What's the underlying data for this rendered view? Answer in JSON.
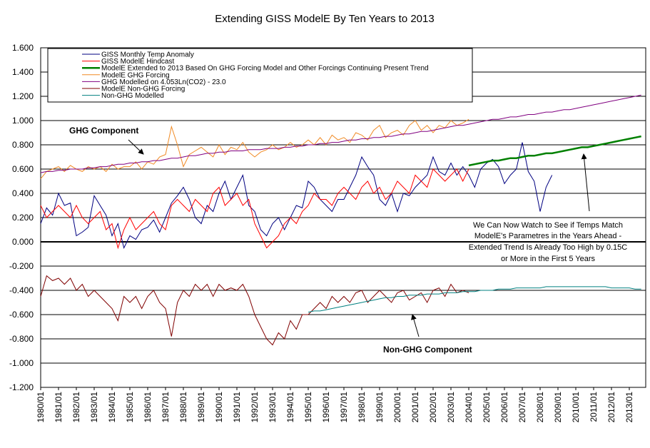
{
  "chart_data": {
    "type": "line",
    "title": "Extending GISS ModelE By Ten Years to 2013",
    "categories": [
      "1980/01",
      null,
      null,
      "1981/01",
      null,
      null,
      "1982/01",
      null,
      null,
      "1983/01",
      null,
      null,
      "1984/01",
      null,
      null,
      "1985/01",
      null,
      null,
      "1986/01",
      null,
      null,
      "1987/01",
      null,
      null,
      "1988/01",
      null,
      null,
      "1989/01",
      null,
      null,
      "1990/01",
      null,
      null,
      "1991/01",
      null,
      null,
      "1992/01",
      null,
      null,
      "1993/01",
      null,
      null,
      "1994/01",
      null,
      null,
      "1995/01",
      null,
      null,
      "1996/01",
      null,
      null,
      "1997/01",
      null,
      null,
      "1998/01",
      null,
      null,
      "1999/01",
      null,
      null,
      "2000/01",
      null,
      null,
      "2001/01",
      null,
      null,
      "2002/01",
      null,
      null,
      "2003/01",
      null,
      null,
      "2004/01",
      null,
      null,
      "2005/01",
      null,
      null,
      "2006/01",
      null,
      null,
      "2007/01",
      null,
      null,
      "2008/01",
      null,
      null,
      "2009/01",
      null,
      null,
      "2010/01",
      null,
      null,
      "2011/01",
      null,
      null,
      "2012/01",
      null,
      null,
      "2013/01",
      null,
      null
    ],
    "ylim": [
      -1.2,
      1.6
    ],
    "yticks": [
      {
        "value": 1.6,
        "label": "1.600"
      },
      {
        "value": 1.4,
        "label": "1.400"
      },
      {
        "value": 1.2,
        "label": "1.200"
      },
      {
        "value": 1.0,
        "label": "1.000"
      },
      {
        "value": 0.8,
        "label": "0.800"
      },
      {
        "value": 0.6,
        "label": "0.600"
      },
      {
        "value": 0.4,
        "label": "0.400"
      },
      {
        "value": 0.2,
        "label": "0.200"
      },
      {
        "value": 0,
        "label": "0.000"
      },
      {
        "value": -0.2,
        "label": "-0.200"
      },
      {
        "value": -0.4,
        "label": "-0.400"
      },
      {
        "value": -0.6,
        "label": "-0.600"
      },
      {
        "value": -0.8,
        "label": "-0.800"
      },
      {
        "value": -1.0,
        "label": "-1.000"
      },
      {
        "value": -1.2,
        "label": "-1.200"
      }
    ],
    "grid": true,
    "legend": "top-left",
    "annotations": [
      "GHG Component",
      "Non-GHG Component",
      "We Can Now Watch to See if Temps Match",
      "ModelE's Parametres in the Years Ahead -",
      "Extended Trend Is Already Too High by 0.15C",
      "or More in the First 5 Years"
    ],
    "series": [
      {
        "name": "GISS Monthly Temp Anomaly",
        "color": "#000080",
        "values": [
          0.15,
          0.28,
          0.22,
          0.4,
          0.3,
          0.32,
          0.05,
          0.08,
          0.12,
          0.38,
          0.3,
          0.22,
          0.05,
          0.15,
          -0.05,
          0.05,
          0.02,
          0.1,
          0.12,
          0.18,
          0.08,
          0.2,
          0.32,
          0.38,
          0.45,
          0.35,
          0.2,
          0.15,
          0.3,
          0.25,
          0.4,
          0.5,
          0.35,
          0.45,
          0.55,
          0.3,
          0.25,
          0.1,
          0.05,
          0.15,
          0.2,
          0.1,
          0.2,
          0.3,
          0.28,
          0.5,
          0.45,
          0.35,
          0.3,
          0.25,
          0.35,
          0.35,
          0.45,
          0.55,
          0.7,
          0.62,
          0.55,
          0.35,
          0.3,
          0.4,
          0.25,
          0.4,
          0.38,
          0.45,
          0.5,
          0.55,
          0.7,
          0.58,
          0.55,
          0.65,
          0.55,
          0.62,
          0.55,
          0.45,
          0.6,
          0.65,
          0.68,
          0.62,
          0.48,
          0.55,
          0.6,
          0.82,
          0.58,
          0.5,
          0.25,
          0.45,
          0.55,
          null,
          null,
          null,
          null,
          null,
          null,
          null,
          null,
          null,
          null,
          null,
          null,
          null,
          null,
          null
        ]
      },
      {
        "name": "GISS ModelE Hindcast",
        "color": "#ff0000",
        "values": [
          0.3,
          0.2,
          0.25,
          0.3,
          0.25,
          0.2,
          0.3,
          0.2,
          0.15,
          0.2,
          0.25,
          0.1,
          0.15,
          -0.05,
          0.1,
          0.2,
          0.1,
          0.15,
          0.2,
          0.25,
          0.15,
          0.1,
          0.3,
          0.35,
          0.3,
          0.25,
          0.35,
          0.3,
          0.25,
          0.4,
          0.45,
          0.3,
          0.35,
          0.4,
          0.3,
          0.35,
          0.15,
          0.05,
          -0.05,
          0.0,
          0.05,
          0.15,
          0.2,
          0.15,
          0.25,
          0.3,
          0.4,
          0.35,
          0.35,
          0.3,
          0.4,
          0.45,
          0.4,
          0.35,
          0.45,
          0.5,
          0.4,
          0.45,
          0.35,
          0.4,
          0.5,
          0.45,
          0.4,
          0.55,
          0.5,
          0.45,
          0.6,
          0.55,
          0.5,
          0.55,
          0.6,
          0.5,
          0.6,
          null,
          null,
          null,
          null,
          null,
          null,
          null,
          null,
          null,
          null,
          null,
          null,
          null,
          null,
          null,
          null,
          null,
          null,
          null,
          null,
          null,
          null,
          null,
          null,
          null,
          null,
          null,
          null,
          null
        ]
      },
      {
        "name": "ModelE Extended to 2013 Based On GHG Forcing Model and Other Forcings Continuing Present Trend",
        "color": "#008000",
        "width": 2.5,
        "values": [
          null,
          null,
          null,
          null,
          null,
          null,
          null,
          null,
          null,
          null,
          null,
          null,
          null,
          null,
          null,
          null,
          null,
          null,
          null,
          null,
          null,
          null,
          null,
          null,
          null,
          null,
          null,
          null,
          null,
          null,
          null,
          null,
          null,
          null,
          null,
          null,
          null,
          null,
          null,
          null,
          null,
          null,
          null,
          null,
          null,
          null,
          null,
          null,
          null,
          null,
          null,
          null,
          null,
          null,
          null,
          null,
          null,
          null,
          null,
          null,
          null,
          null,
          null,
          null,
          null,
          null,
          null,
          null,
          null,
          null,
          null,
          null,
          0.63,
          0.64,
          0.65,
          0.66,
          0.67,
          0.67,
          0.68,
          0.69,
          0.69,
          0.7,
          0.71,
          0.71,
          0.72,
          0.73,
          0.73,
          0.74,
          0.75,
          0.76,
          0.77,
          0.78,
          0.78,
          0.79,
          0.8,
          0.81,
          0.82,
          0.83,
          0.84,
          0.85,
          0.86,
          0.87
        ]
      },
      {
        "name": "ModelE GHG Forcing",
        "color": "#f08a24",
        "values": [
          0.52,
          0.58,
          0.6,
          0.62,
          0.58,
          0.63,
          0.6,
          0.58,
          0.62,
          0.6,
          0.62,
          0.58,
          0.64,
          0.6,
          0.62,
          0.62,
          0.66,
          0.6,
          0.66,
          0.64,
          0.7,
          0.72,
          0.95,
          0.8,
          0.62,
          0.72,
          0.75,
          0.78,
          0.74,
          0.7,
          0.8,
          0.72,
          0.78,
          0.76,
          0.82,
          0.74,
          0.7,
          0.74,
          0.76,
          0.8,
          0.76,
          0.78,
          0.82,
          0.78,
          0.8,
          0.84,
          0.8,
          0.86,
          0.8,
          0.88,
          0.84,
          0.86,
          0.82,
          0.9,
          0.88,
          0.84,
          0.92,
          0.96,
          0.86,
          0.9,
          0.92,
          0.88,
          0.96,
          1.0,
          0.92,
          0.96,
          0.9,
          0.96,
          0.94,
          1.0,
          0.96,
          0.98,
          1.01,
          null,
          null,
          null,
          null,
          null,
          null,
          null,
          null,
          null,
          null,
          null,
          null,
          null,
          null,
          null,
          null,
          null,
          null,
          null,
          null,
          null,
          null,
          null,
          null,
          null,
          null,
          null,
          null,
          null
        ]
      },
      {
        "name": "GHG Modelled on 4.053Ln(CO2) - 23.0",
        "color": "#800080",
        "values": [
          0.57,
          0.58,
          0.58,
          0.59,
          0.59,
          0.6,
          0.6,
          0.6,
          0.61,
          0.61,
          0.62,
          0.62,
          0.63,
          0.64,
          0.64,
          0.65,
          0.65,
          0.66,
          0.66,
          0.67,
          0.67,
          0.68,
          0.69,
          0.69,
          0.7,
          0.71,
          0.71,
          0.72,
          0.73,
          0.73,
          0.74,
          0.74,
          0.75,
          0.75,
          0.75,
          0.76,
          0.76,
          0.76,
          0.77,
          0.77,
          0.77,
          0.78,
          0.78,
          0.79,
          0.79,
          0.8,
          0.8,
          0.81,
          0.81,
          0.82,
          0.82,
          0.83,
          0.84,
          0.84,
          0.85,
          0.85,
          0.86,
          0.86,
          0.87,
          0.87,
          0.88,
          0.89,
          0.89,
          0.9,
          0.91,
          0.91,
          0.92,
          0.93,
          0.94,
          0.95,
          0.96,
          0.96,
          0.97,
          0.98,
          0.99,
          1.0,
          1.01,
          1.01,
          1.02,
          1.03,
          1.03,
          1.04,
          1.05,
          1.05,
          1.06,
          1.07,
          1.07,
          1.08,
          1.09,
          1.09,
          1.1,
          1.11,
          1.12,
          1.13,
          1.14,
          1.15,
          1.16,
          1.17,
          1.18,
          1.19,
          1.2,
          1.21
        ]
      },
      {
        "name": "ModelE Non-GHG Forcing",
        "color": "#800000",
        "values": [
          -0.45,
          -0.28,
          -0.32,
          -0.3,
          -0.35,
          -0.3,
          -0.4,
          -0.35,
          -0.45,
          -0.4,
          -0.45,
          -0.5,
          -0.55,
          -0.65,
          -0.45,
          -0.5,
          -0.45,
          -0.55,
          -0.45,
          -0.4,
          -0.5,
          -0.55,
          -0.78,
          -0.5,
          -0.4,
          -0.45,
          -0.35,
          -0.4,
          -0.35,
          -0.45,
          -0.35,
          -0.4,
          -0.38,
          -0.4,
          -0.35,
          -0.45,
          -0.6,
          -0.7,
          -0.8,
          -0.85,
          -0.75,
          -0.8,
          -0.65,
          -0.72,
          -0.6,
          -0.6,
          -0.55,
          -0.5,
          -0.55,
          -0.45,
          -0.5,
          -0.45,
          -0.5,
          -0.42,
          -0.4,
          -0.5,
          -0.45,
          -0.4,
          -0.45,
          -0.5,
          -0.42,
          -0.4,
          -0.48,
          -0.45,
          -0.42,
          -0.5,
          -0.4,
          -0.38,
          -0.45,
          -0.35,
          -0.42,
          -0.4,
          -0.42,
          null,
          null,
          null,
          null,
          null,
          null,
          null,
          null,
          null,
          null,
          null,
          null,
          null,
          null,
          null,
          null,
          null,
          null,
          null,
          null,
          null,
          null,
          null,
          null,
          null,
          null,
          null,
          null,
          null
        ]
      },
      {
        "name": "Non-GHG Modelled",
        "color": "#008080",
        "values": [
          null,
          null,
          null,
          null,
          null,
          null,
          null,
          null,
          null,
          null,
          null,
          null,
          null,
          null,
          null,
          null,
          null,
          null,
          null,
          null,
          null,
          null,
          null,
          null,
          null,
          null,
          null,
          null,
          null,
          null,
          null,
          null,
          null,
          null,
          null,
          null,
          null,
          null,
          null,
          null,
          null,
          null,
          null,
          null,
          null,
          -0.58,
          -0.57,
          -0.57,
          -0.56,
          -0.55,
          -0.54,
          -0.53,
          -0.52,
          -0.51,
          -0.5,
          -0.49,
          -0.48,
          -0.47,
          -0.46,
          -0.46,
          -0.45,
          -0.45,
          -0.44,
          -0.44,
          -0.44,
          -0.43,
          -0.43,
          -0.43,
          -0.42,
          -0.42,
          -0.42,
          -0.41,
          -0.41,
          -0.41,
          -0.4,
          -0.4,
          -0.4,
          -0.39,
          -0.39,
          -0.39,
          -0.38,
          -0.38,
          -0.38,
          -0.38,
          -0.38,
          -0.37,
          -0.37,
          -0.37,
          -0.37,
          -0.37,
          -0.37,
          -0.37,
          -0.37,
          -0.37,
          -0.37,
          -0.37,
          -0.38,
          -0.38,
          -0.38,
          -0.38,
          -0.39,
          -0.39
        ]
      }
    ]
  }
}
